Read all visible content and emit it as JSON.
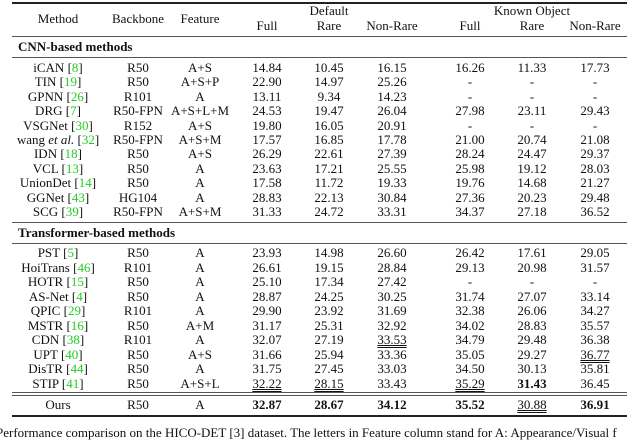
{
  "header": {
    "method": "Method",
    "backbone": "Backbone",
    "feature": "Feature",
    "default_group": "Default",
    "known_group": "Known Object",
    "cols": [
      "Full",
      "Rare",
      "Non-Rare",
      "Full",
      "Rare",
      "Non-Rare"
    ]
  },
  "sections": [
    {
      "title": "CNN-based methods",
      "rows": [
        {
          "method": "iCAN",
          "cite": "8",
          "backbone": "R50",
          "feature": "A+S",
          "values": [
            "14.84",
            "10.45",
            "16.15",
            "16.26",
            "11.33",
            "17.73"
          ],
          "bold": [],
          "underline": []
        },
        {
          "method": "TIN",
          "cite": "19",
          "backbone": "R50",
          "feature": "A+S+P",
          "values": [
            "22.90",
            "14.97",
            "25.26",
            "-",
            "-",
            "-"
          ],
          "bold": [],
          "underline": []
        },
        {
          "method": "GPNN",
          "cite": "26",
          "backbone": "R101",
          "feature": "A",
          "values": [
            "13.11",
            "9.34",
            "14.23",
            "-",
            "-",
            "-"
          ],
          "bold": [],
          "underline": []
        },
        {
          "method": "DRG",
          "cite": "7",
          "backbone": "R50-FPN",
          "feature": "A+S+L+M",
          "values": [
            "24.53",
            "19.47",
            "26.04",
            "27.98",
            "23.11",
            "29.43"
          ],
          "bold": [],
          "underline": []
        },
        {
          "method": "VSGNet",
          "cite": "30",
          "backbone": "R152",
          "feature": "A+S",
          "values": [
            "19.80",
            "16.05",
            "20.91",
            "-",
            "-",
            "-"
          ],
          "bold": [],
          "underline": []
        },
        {
          "method": "wang ",
          "method_italic": "et al.",
          "cite": "32",
          "backbone": "R50-FPN",
          "feature": "A+S+M",
          "values": [
            "17.57",
            "16.85",
            "17.78",
            "21.00",
            "20.74",
            "21.08"
          ],
          "bold": [],
          "underline": []
        },
        {
          "method": "IDN",
          "cite": "18",
          "backbone": "R50",
          "feature": "A+S",
          "values": [
            "26.29",
            "22.61",
            "27.39",
            "28.24",
            "24.47",
            "29.37"
          ],
          "bold": [],
          "underline": []
        },
        {
          "method": "VCL",
          "cite": "13",
          "backbone": "R50",
          "feature": "A",
          "values": [
            "23.63",
            "17.21",
            "25.55",
            "25.98",
            "19.12",
            "28.03"
          ],
          "bold": [],
          "underline": []
        },
        {
          "method": "UnionDet",
          "cite": "14",
          "backbone": "R50",
          "feature": "A",
          "values": [
            "17.58",
            "11.72",
            "19.33",
            "19.76",
            "14.68",
            "21.27"
          ],
          "bold": [],
          "underline": []
        },
        {
          "method": "GGNet",
          "cite": "43",
          "backbone": "HG104",
          "feature": "A",
          "values": [
            "28.83",
            "22.13",
            "30.84",
            "27.36",
            "20.23",
            "29.48"
          ],
          "bold": [],
          "underline": []
        },
        {
          "method": "SCG",
          "cite": "39",
          "backbone": "R50-FPN",
          "feature": "A+S+M",
          "values": [
            "31.33",
            "24.72",
            "33.31",
            "34.37",
            "27.18",
            "36.52"
          ],
          "bold": [],
          "underline": []
        }
      ]
    },
    {
      "title": "Transformer-based methods",
      "rows": [
        {
          "method": "PST",
          "cite": "5",
          "backbone": "R50",
          "feature": "A",
          "values": [
            "23.93",
            "14.98",
            "26.60",
            "26.42",
            "17.61",
            "29.05"
          ],
          "bold": [],
          "underline": []
        },
        {
          "method": "HoiTrans",
          "cite": "46",
          "backbone": "R101",
          "feature": "A",
          "values": [
            "26.61",
            "19.15",
            "28.84",
            "29.13",
            "20.98",
            "31.57"
          ],
          "bold": [],
          "underline": []
        },
        {
          "method": "HOTR",
          "cite": "15",
          "backbone": "R50",
          "feature": "A",
          "values": [
            "25.10",
            "17.34",
            "27.42",
            "-",
            "-",
            "-"
          ],
          "bold": [],
          "underline": []
        },
        {
          "method": "AS-Net",
          "cite": "4",
          "backbone": "R50",
          "feature": "A",
          "values": [
            "28.87",
            "24.25",
            "30.25",
            "31.74",
            "27.07",
            "33.14"
          ],
          "bold": [],
          "underline": []
        },
        {
          "method": "QPIC",
          "cite": "29",
          "backbone": "R101",
          "feature": "A",
          "values": [
            "29.90",
            "23.92",
            "31.69",
            "32.38",
            "26.06",
            "34.27"
          ],
          "bold": [],
          "underline": []
        },
        {
          "method": "MSTR",
          "cite": "16",
          "backbone": "R50",
          "feature": "A+M",
          "values": [
            "31.17",
            "25.31",
            "32.92",
            "34.02",
            "28.83",
            "35.57"
          ],
          "bold": [],
          "underline": []
        },
        {
          "method": "CDN",
          "cite": "38",
          "backbone": "R101",
          "feature": "A",
          "values": [
            "32.07",
            "27.19",
            "33.53",
            "34.79",
            "29.48",
            "36.38"
          ],
          "bold": [],
          "underline": [
            2
          ]
        },
        {
          "method": "UPT",
          "cite": "40",
          "backbone": "R50",
          "feature": "A+S",
          "values": [
            "31.66",
            "25.94",
            "33.36",
            "35.05",
            "29.27",
            "36.77"
          ],
          "bold": [],
          "underline": [
            5
          ]
        },
        {
          "method": "DisTR",
          "cite": "44",
          "backbone": "R50",
          "feature": "A",
          "values": [
            "31.75",
            "27.45",
            "33.03",
            "34.50",
            "30.13",
            "35.81"
          ],
          "bold": [],
          "underline": []
        },
        {
          "method": "STIP",
          "cite": "41",
          "backbone": "R50",
          "feature": "A+S+L",
          "values": [
            "32.22",
            "28.15",
            "33.43",
            "35.29",
            "31.43",
            "36.45"
          ],
          "bold": [
            4
          ],
          "underline": [
            0,
            1,
            3
          ]
        }
      ]
    }
  ],
  "ours": {
    "method": "Ours",
    "backbone": "R50",
    "feature": "A",
    "values": [
      "32.87",
      "28.67",
      "34.12",
      "35.52",
      "30.88",
      "36.91"
    ],
    "bold": [
      0,
      1,
      2,
      3,
      5
    ],
    "underline": [
      4
    ]
  },
  "caption": "Performance comparison on the HICO-DET [3] dataset. The letters in Feature column stand for A: Appearance/Visual f",
  "colors": {
    "citation": "#22cc22"
  }
}
